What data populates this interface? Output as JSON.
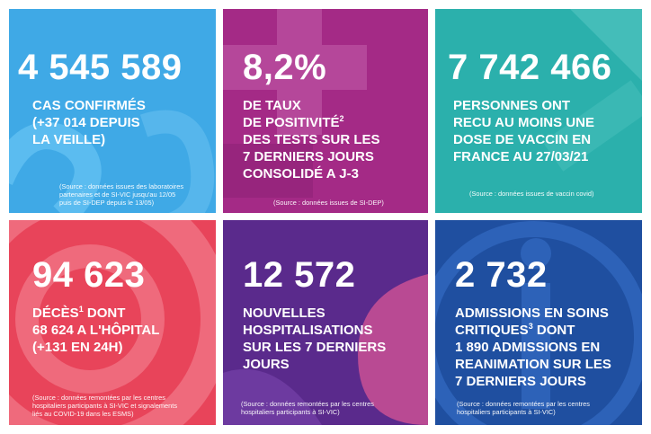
{
  "tiles": [
    {
      "number": "4 545 589",
      "lines": [
        "CAS CONFIRMÉS",
        "(+37 014 DEPUIS",
        "LA VEILLE)"
      ],
      "source": [
        "(Source : données issues des laboratoires",
        "partenaires et de SI-VIC jusqu'au 12/05",
        "puis de SI-DEP depuis le 13/05)"
      ],
      "color": "#3fa9e6"
    },
    {
      "number": "8,2%",
      "lines": [
        "DE TAUX",
        "DE POSITIVITÉ",
        "DES TESTS SUR LES",
        "7 DERNIERS JOURS",
        "CONSOLIDÉ A J-3"
      ],
      "footnote": "2",
      "source": [
        "(Source : données issues de SI-DEP)"
      ],
      "color": "#a42a86"
    },
    {
      "number": "7 742 466",
      "lines": [
        "PERSONNES ONT",
        "RECU AU MOINS UNE",
        "DOSE DE VACCIN EN",
        "FRANCE AU 27/03/21"
      ],
      "source": [
        "(Source : données issues de vaccin covid)"
      ],
      "color": "#2bb0ac"
    },
    {
      "number": "94 623",
      "lines": [
        "DÉCÈS",
        " DONT",
        "68 624 A L'HÔPITAL",
        "(+131 EN 24H)"
      ],
      "footnote": "1",
      "source": [
        "(Source : données remontées par les centres",
        "hospitaliers participants à SI-VIC et signalements",
        "liés au COVID-19 dans les ESMS)"
      ],
      "color": "#e8445a"
    },
    {
      "number": "12 572",
      "lines": [
        "NOUVELLES",
        "HOSPITALISATIONS",
        "SUR LES 7 DERNIERS",
        "JOURS"
      ],
      "source": [
        "(Source : données remontées par les centres",
        "hospitaliers participants à SI-VIC)"
      ],
      "color": "#5a2a8c"
    },
    {
      "number": "2 732",
      "lines": [
        "ADMISSIONS EN SOINS",
        "CRITIQUES",
        " DONT",
        "1 890 ADMISSIONS EN",
        "REANIMATION SUR LES",
        "7 DERNIERS JOURS"
      ],
      "footnote": "3",
      "source": [
        "(Source : données remontées par les centres",
        "hospitaliers participants à SI-VIC)"
      ],
      "color": "#1f4fa0"
    }
  ]
}
